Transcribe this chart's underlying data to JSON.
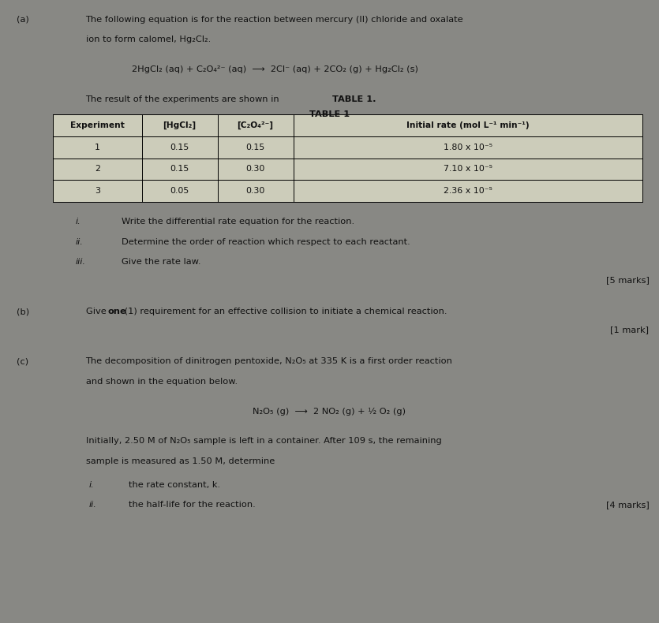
{
  "bg_color": "#888884",
  "table_bg": "#e8e8e0",
  "text_color": "#111111",
  "figsize": [
    8.35,
    7.9
  ],
  "dpi": 100,
  "section_a_label": "(a)",
  "section_a_line1": "The following equation is for the reaction between mercury (II) chloride and oxalate",
  "section_a_line2": "ion to form calomel, Hg₂Cl₂.",
  "equation_a": "2HgCl₂ (aq) + C₂O₄²⁻ (aq)  ⟶  2Cl⁻ (aq) + 2CO₂ (g) + Hg₂Cl₂ (s)",
  "table_intro_plain": "The result of the experiments are shown in ",
  "table_intro_bold": "TABLE 1.",
  "table_title": "TABLE 1",
  "col_headers": [
    "Experiment",
    "[HgCl₂]",
    "[C₂O₄²⁻]",
    "Initial rate (mol L⁻¹ min⁻¹)"
  ],
  "table_data": [
    [
      "1",
      "0.15",
      "0.15",
      "1.80 x 10⁻⁵"
    ],
    [
      "2",
      "0.15",
      "0.30",
      "7.10 x 10⁻⁵"
    ],
    [
      "3",
      "0.05",
      "0.30",
      "2.36 x 10⁻⁵"
    ]
  ],
  "roman_i": "i.",
  "roman_ii": "ii.",
  "roman_iii": "iii.",
  "q_i": "Write the differential rate equation for the reaction.",
  "q_ii": "Determine the order of reaction which respect to each reactant.",
  "q_iii": "Give the rate law.",
  "marks_a": "[5 marks]",
  "section_b_label": "(b)",
  "section_b_pre": "Give ",
  "section_b_bold": "one",
  "section_b_post": " (1) requirement for an effective collision to initiate a chemical reaction.",
  "marks_b": "[1 mark]",
  "section_c_label": "(c)",
  "section_c_line1": "The decomposition of dinitrogen pentoxide, N₂O₅ at 335 K is a first order reaction",
  "section_c_line2": "and shown in the equation below.",
  "equation_c": "N₂O₅ (g)  ⟶  2 NO₂ (g) + ½ O₂ (g)",
  "section_c_body1": "Initially, 2.50 M of N₂O₅ sample is left in a container. After 109 s, the remaining",
  "section_c_body2": "sample is measured as 1.50 M, determine",
  "sub_i": "i.",
  "sub_ii": "ii.",
  "sub_q_i": "the rate constant, k.",
  "sub_q_ii": "the half-life for the reaction.",
  "marks_c": "[4 marks]"
}
